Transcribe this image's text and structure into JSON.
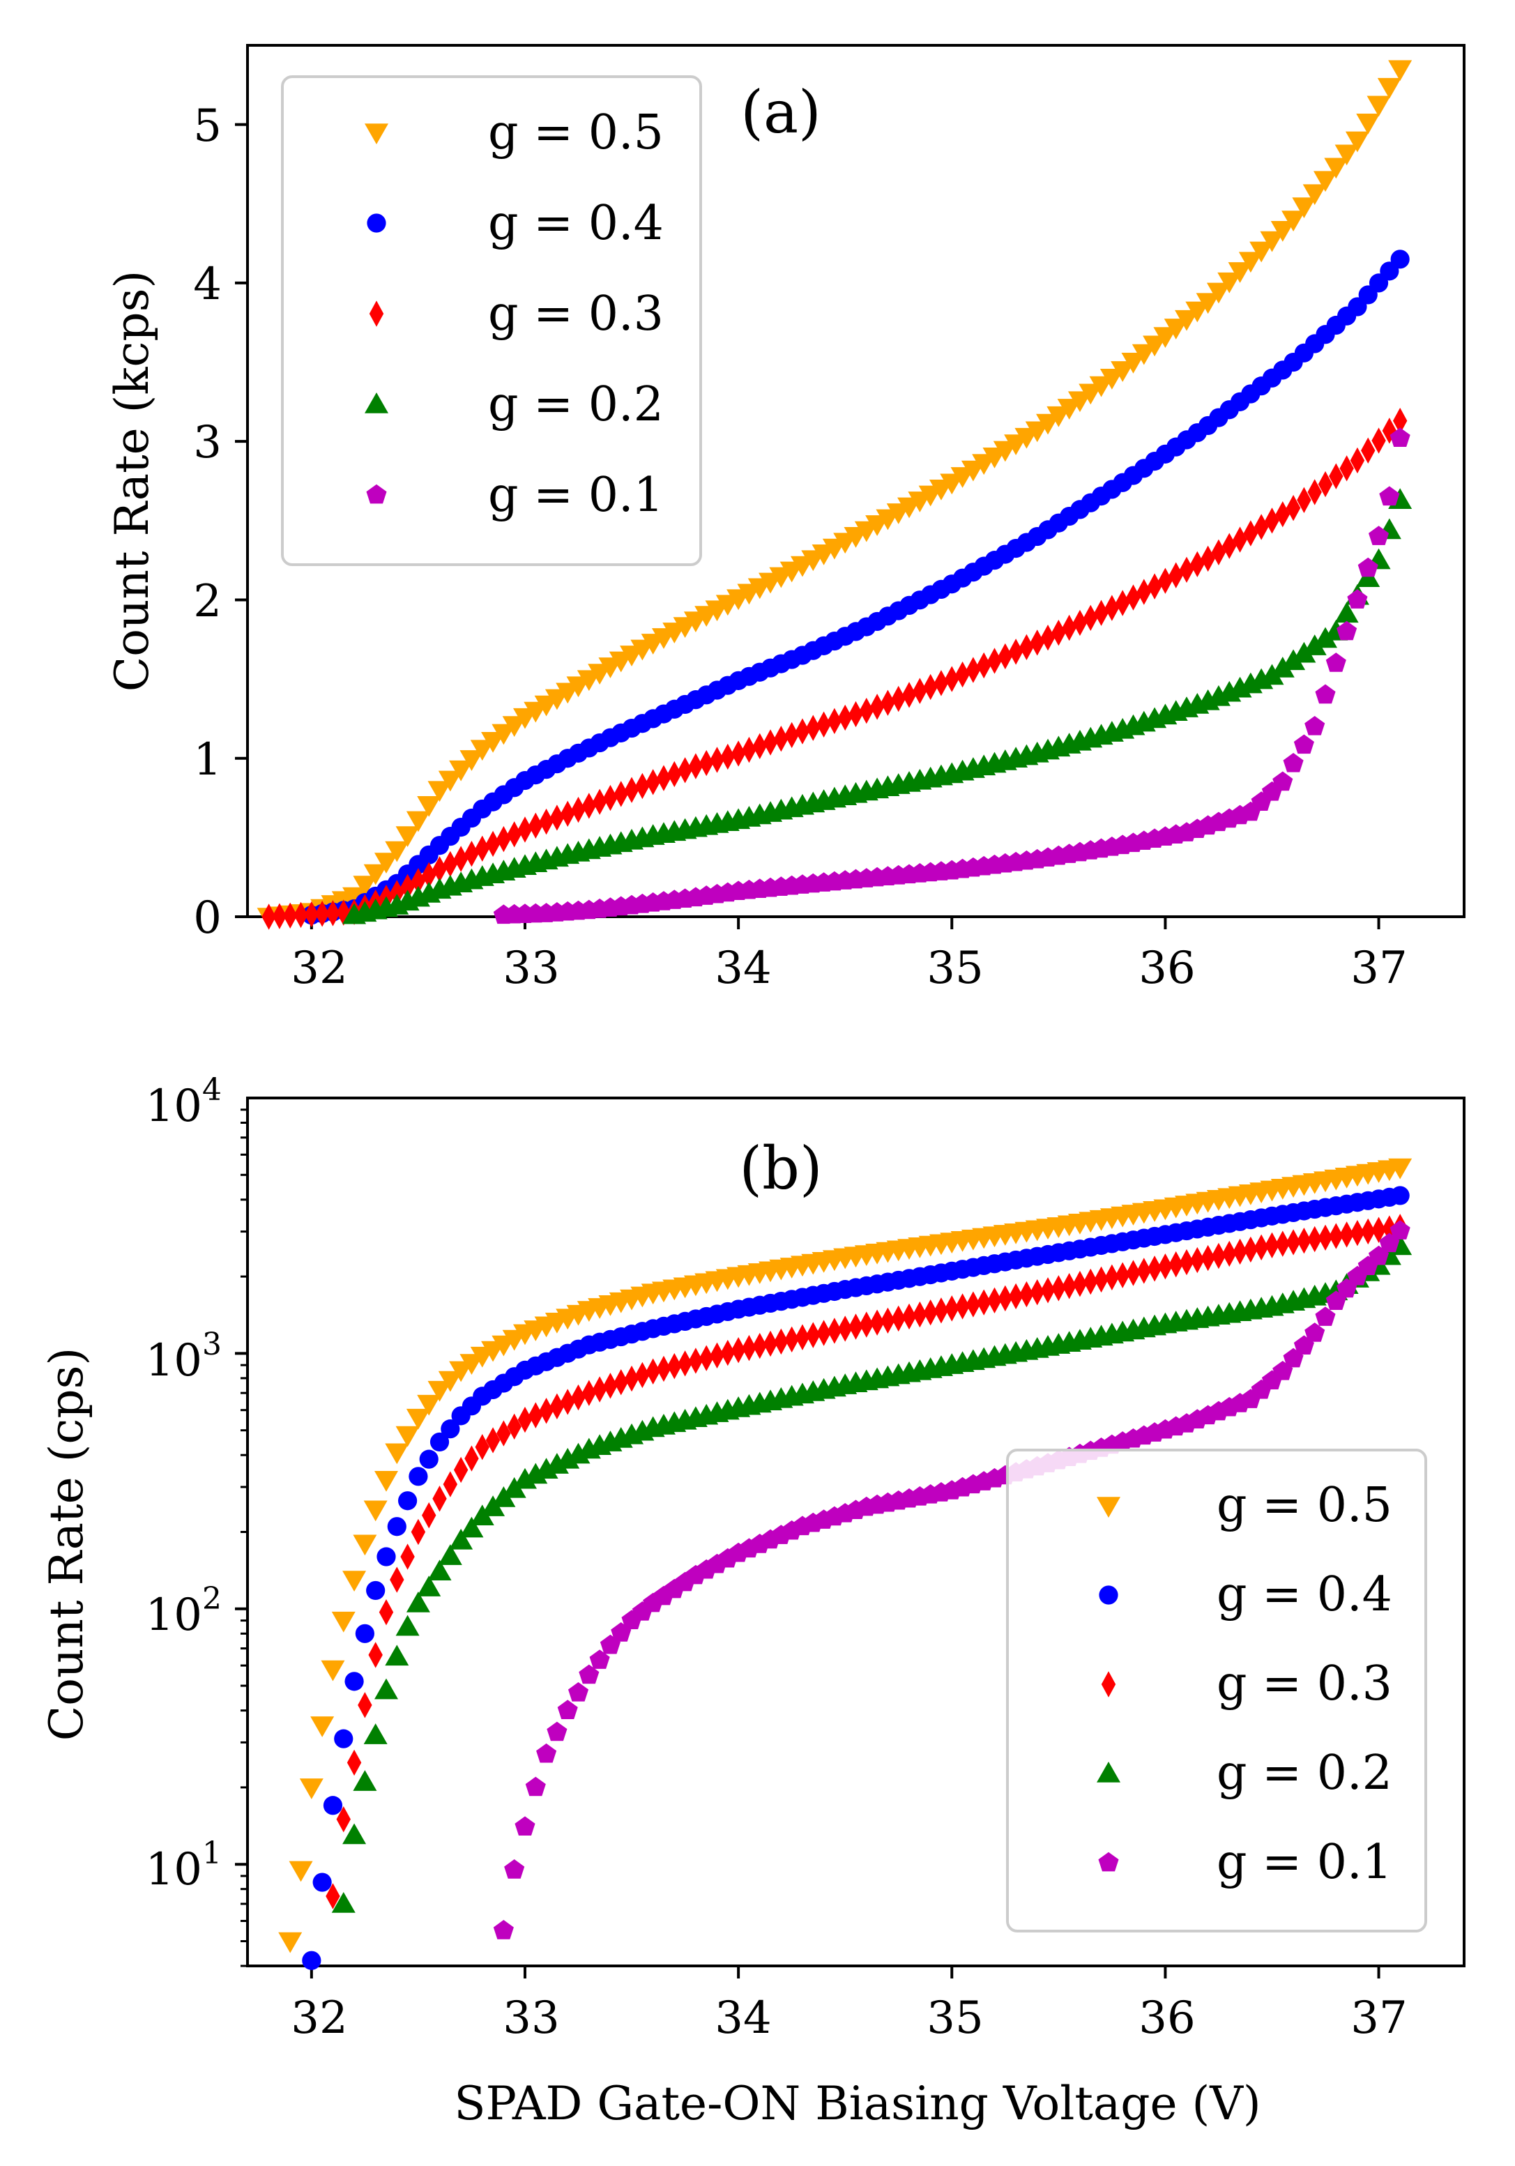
{
  "figure": {
    "shared_xlabel": "SPAD Gate-ON Biasing Voltage (V)"
  },
  "chart_data": [
    {
      "type": "scatter",
      "panel_label": "(a)",
      "xlabel": "",
      "ylabel": "Count Rate (kcps)",
      "xlim": [
        31.7,
        37.4
      ],
      "ylim": [
        0,
        5.5
      ],
      "yscale": "linear",
      "xticks": [
        32,
        33,
        34,
        35,
        36,
        37
      ],
      "yticks": [
        0,
        1,
        2,
        3,
        4,
        5
      ],
      "legend_position": "top-left",
      "grid": false,
      "series": [
        {
          "name": "g = 0.5",
          "color": "#FFA500",
          "marker": "triangle-down",
          "points": [
            [
              31.8,
              0.0
            ],
            [
              32.0,
              0.03
            ],
            [
              32.2,
              0.13
            ],
            [
              32.4,
              0.42
            ],
            [
              32.6,
              0.8
            ],
            [
              32.8,
              1.06
            ],
            [
              33.0,
              1.26
            ],
            [
              33.2,
              1.42
            ],
            [
              33.4,
              1.58
            ],
            [
              33.6,
              1.73
            ],
            [
              33.8,
              1.87
            ],
            [
              34.0,
              2.01
            ],
            [
              34.3,
              2.22
            ],
            [
              34.6,
              2.44
            ],
            [
              35.0,
              2.74
            ],
            [
              35.4,
              3.07
            ],
            [
              35.8,
              3.45
            ],
            [
              36.2,
              3.88
            ],
            [
              36.6,
              4.4
            ],
            [
              36.9,
              4.9
            ],
            [
              37.1,
              5.35
            ]
          ]
        },
        {
          "name": "g = 0.4",
          "color": "#0000FF",
          "marker": "circle",
          "points": [
            [
              32.0,
              0.01
            ],
            [
              32.2,
              0.05
            ],
            [
              32.4,
              0.21
            ],
            [
              32.6,
              0.45
            ],
            [
              32.8,
              0.68
            ],
            [
              33.0,
              0.86
            ],
            [
              33.2,
              1.0
            ],
            [
              33.4,
              1.13
            ],
            [
              33.6,
              1.25
            ],
            [
              33.8,
              1.37
            ],
            [
              34.0,
              1.49
            ],
            [
              34.3,
              1.65
            ],
            [
              34.6,
              1.83
            ],
            [
              35.0,
              2.1
            ],
            [
              35.4,
              2.4
            ],
            [
              35.8,
              2.74
            ],
            [
              36.2,
              3.1
            ],
            [
              36.6,
              3.5
            ],
            [
              36.9,
              3.85
            ],
            [
              37.1,
              4.15
            ]
          ]
        },
        {
          "name": "g = 0.3",
          "color": "#FF0000",
          "marker": "diamond",
          "points": [
            [
              31.8,
              0.0
            ],
            [
              32.2,
              0.03
            ],
            [
              32.4,
              0.15
            ],
            [
              32.6,
              0.3
            ],
            [
              32.8,
              0.43
            ],
            [
              33.0,
              0.55
            ],
            [
              33.2,
              0.65
            ],
            [
              33.4,
              0.75
            ],
            [
              33.6,
              0.85
            ],
            [
              33.8,
              0.95
            ],
            [
              34.0,
              1.03
            ],
            [
              34.3,
              1.17
            ],
            [
              34.6,
              1.3
            ],
            [
              35.0,
              1.5
            ],
            [
              35.4,
              1.73
            ],
            [
              35.8,
              1.98
            ],
            [
              36.2,
              2.26
            ],
            [
              36.6,
              2.58
            ],
            [
              36.9,
              2.88
            ],
            [
              37.1,
              3.13
            ]
          ]
        },
        {
          "name": "g = 0.2",
          "color": "#008000",
          "marker": "triangle-up",
          "points": [
            [
              32.2,
              0.01
            ],
            [
              32.4,
              0.07
            ],
            [
              32.6,
              0.17
            ],
            [
              32.8,
              0.25
            ],
            [
              33.0,
              0.32
            ],
            [
              33.2,
              0.39
            ],
            [
              33.4,
              0.45
            ],
            [
              33.6,
              0.51
            ],
            [
              33.8,
              0.56
            ],
            [
              34.0,
              0.61
            ],
            [
              34.3,
              0.7
            ],
            [
              34.6,
              0.79
            ],
            [
              35.0,
              0.9
            ],
            [
              35.4,
              1.03
            ],
            [
              35.8,
              1.18
            ],
            [
              36.2,
              1.36
            ],
            [
              36.5,
              1.52
            ],
            [
              36.8,
              1.8
            ],
            [
              37.0,
              2.25
            ],
            [
              37.1,
              2.63
            ]
          ]
        },
        {
          "name": "g = 0.1",
          "color": "#BF00BF",
          "marker": "pentagon",
          "points": [
            [
              32.9,
              0.01
            ],
            [
              33.1,
              0.02
            ],
            [
              33.3,
              0.04
            ],
            [
              33.5,
              0.07
            ],
            [
              33.8,
              0.12
            ],
            [
              34.0,
              0.16
            ],
            [
              34.3,
              0.2
            ],
            [
              34.6,
              0.24
            ],
            [
              35.0,
              0.29
            ],
            [
              35.4,
              0.36
            ],
            [
              35.8,
              0.45
            ],
            [
              36.1,
              0.53
            ],
            [
              36.4,
              0.66
            ],
            [
              36.55,
              0.85
            ],
            [
              36.7,
              1.2
            ],
            [
              36.8,
              1.6
            ],
            [
              36.9,
              2.0
            ],
            [
              37.0,
              2.4
            ],
            [
              37.05,
              2.65
            ],
            [
              37.1,
              3.02
            ]
          ]
        }
      ]
    },
    {
      "type": "scatter",
      "panel_label": "(b)",
      "xlabel": "SPAD Gate-ON Biasing Voltage (V)",
      "ylabel": "Count Rate (cps)",
      "xlim": [
        31.7,
        37.4
      ],
      "ylim": [
        4,
        10000
      ],
      "yscale": "log",
      "xticks": [
        32,
        33,
        34,
        35,
        36,
        37
      ],
      "ytick_labels": [
        {
          "base": "10",
          "exp": "1",
          "value": 10
        },
        {
          "base": "10",
          "exp": "2",
          "value": 100
        },
        {
          "base": "10",
          "exp": "3",
          "value": 1000
        },
        {
          "base": "10",
          "exp": "4",
          "value": 10000
        }
      ],
      "legend_position": "bottom-right",
      "grid": false,
      "series": [
        {
          "name": "g = 0.5",
          "color": "#FFA500",
          "marker": "triangle-down",
          "points": [
            [
              31.9,
              5
            ],
            [
              31.95,
              9.5
            ],
            [
              32.0,
              20
            ],
            [
              32.05,
              35
            ],
            [
              32.1,
              58
            ],
            [
              32.15,
              90
            ],
            [
              32.2,
              130
            ],
            [
              32.25,
              180
            ],
            [
              32.3,
              245
            ],
            [
              32.35,
              320
            ],
            [
              32.4,
              410
            ],
            [
              32.5,
              560
            ],
            [
              32.6,
              720
            ],
            [
              32.7,
              860
            ],
            [
              32.8,
              980
            ],
            [
              33.0,
              1200
            ],
            [
              33.3,
              1480
            ],
            [
              33.6,
              1730
            ],
            [
              34.0,
              2010
            ],
            [
              34.5,
              2380
            ],
            [
              35.0,
              2740
            ],
            [
              35.5,
              3150
            ],
            [
              36.0,
              3700
            ],
            [
              36.5,
              4380
            ],
            [
              37.1,
              5350
            ]
          ]
        },
        {
          "name": "g = 0.4",
          "color": "#0000FF",
          "marker": "circle",
          "points": [
            [
              32.0,
              4.2
            ],
            [
              32.05,
              8.5
            ],
            [
              32.1,
              17
            ],
            [
              32.15,
              31
            ],
            [
              32.2,
              52
            ],
            [
              32.25,
              80
            ],
            [
              32.3,
              118
            ],
            [
              32.35,
              160
            ],
            [
              32.4,
              210
            ],
            [
              32.45,
              265
            ],
            [
              32.5,
              330
            ],
            [
              32.6,
              450
            ],
            [
              32.7,
              570
            ],
            [
              32.8,
              680
            ],
            [
              33.0,
              860
            ],
            [
              33.3,
              1080
            ],
            [
              33.6,
              1250
            ],
            [
              34.0,
              1490
            ],
            [
              34.5,
              1780
            ],
            [
              35.0,
              2100
            ],
            [
              35.5,
              2480
            ],
            [
              36.0,
              2920
            ],
            [
              36.5,
              3450
            ],
            [
              37.1,
              4150
            ]
          ]
        },
        {
          "name": "g = 0.3",
          "color": "#FF0000",
          "marker": "diamond",
          "points": [
            [
              32.1,
              7.5
            ],
            [
              32.15,
              15
            ],
            [
              32.2,
              25
            ],
            [
              32.25,
              42
            ],
            [
              32.3,
              66
            ],
            [
              32.35,
              97
            ],
            [
              32.4,
              130
            ],
            [
              32.45,
              160
            ],
            [
              32.5,
              200
            ],
            [
              32.6,
              270
            ],
            [
              32.7,
              350
            ],
            [
              32.8,
              430
            ],
            [
              33.0,
              550
            ],
            [
              33.3,
              700
            ],
            [
              33.6,
              850
            ],
            [
              34.0,
              1030
            ],
            [
              34.5,
              1250
            ],
            [
              35.0,
              1500
            ],
            [
              35.5,
              1800
            ],
            [
              36.0,
              2190
            ],
            [
              36.5,
              2650
            ],
            [
              37.1,
              3130
            ]
          ]
        },
        {
          "name": "g = 0.2",
          "color": "#008000",
          "marker": "triangle-up",
          "points": [
            [
              32.15,
              7
            ],
            [
              32.2,
              13
            ],
            [
              32.25,
              21
            ],
            [
              32.3,
              32
            ],
            [
              32.35,
              48
            ],
            [
              32.4,
              65
            ],
            [
              32.45,
              85
            ],
            [
              32.5,
              105
            ],
            [
              32.6,
              140
            ],
            [
              32.7,
              185
            ],
            [
              32.8,
              230
            ],
            [
              33.0,
              320
            ],
            [
              33.3,
              420
            ],
            [
              33.6,
              510
            ],
            [
              34.0,
              610
            ],
            [
              34.5,
              750
            ],
            [
              35.0,
              900
            ],
            [
              35.5,
              1080
            ],
            [
              36.0,
              1300
            ],
            [
              36.5,
              1520
            ],
            [
              36.8,
              1750
            ],
            [
              37.0,
              2200
            ],
            [
              37.1,
              2630
            ]
          ]
        },
        {
          "name": "g = 0.1",
          "color": "#BF00BF",
          "marker": "pentagon",
          "points": [
            [
              32.9,
              5.5
            ],
            [
              32.95,
              9.5
            ],
            [
              33.0,
              14
            ],
            [
              33.05,
              20
            ],
            [
              33.1,
              27
            ],
            [
              33.2,
              40
            ],
            [
              33.3,
              55
            ],
            [
              33.4,
              72
            ],
            [
              33.5,
              90
            ],
            [
              33.6,
              105
            ],
            [
              33.8,
              135
            ],
            [
              34.0,
              165
            ],
            [
              34.3,
              210
            ],
            [
              34.6,
              250
            ],
            [
              35.0,
              290
            ],
            [
              35.4,
              360
            ],
            [
              35.8,
              450
            ],
            [
              36.1,
              530
            ],
            [
              36.4,
              660
            ],
            [
              36.55,
              850
            ],
            [
              36.7,
              1200
            ],
            [
              36.8,
              1600
            ],
            [
              36.9,
              2000
            ],
            [
              37.0,
              2400
            ],
            [
              37.1,
              3020
            ]
          ]
        }
      ]
    }
  ]
}
